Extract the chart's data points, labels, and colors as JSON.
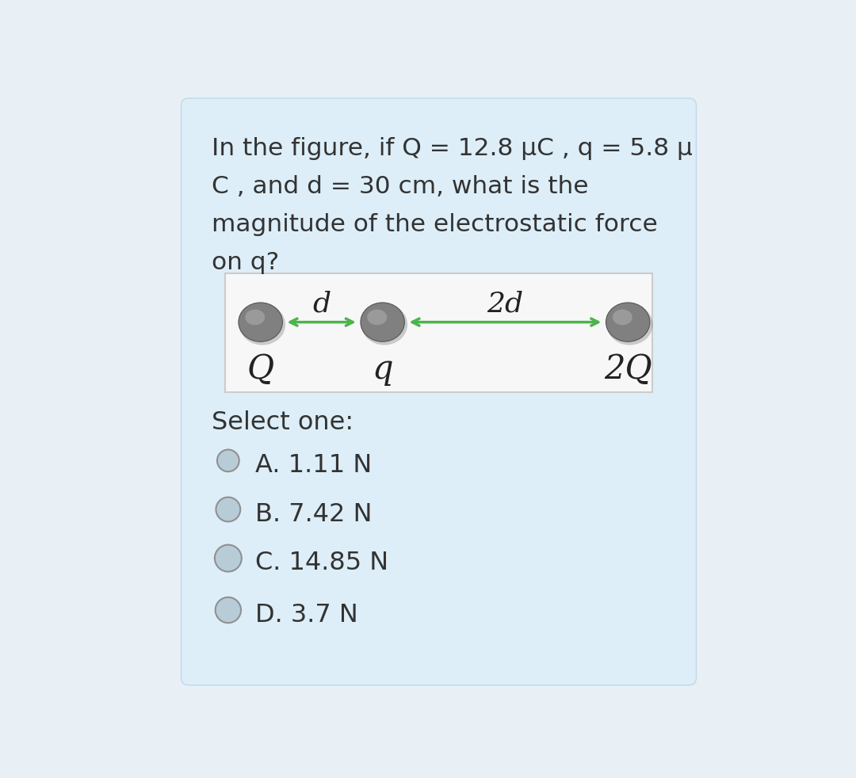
{
  "bg_color": "#ddeef8",
  "card_bg_color": "#ddeef8",
  "card_edge_color": "#c0d8ea",
  "diag_box_color": "#f7f7f7",
  "diag_box_edge": "#cccccc",
  "question_lines": [
    "In the figure, if Q = 12.8 μC , q = 5.8 μ",
    "C , and d = 30 cm, what is the",
    "magnitude of the electrostatic force",
    "on q?"
  ],
  "select_label": "Select one:",
  "options": [
    "A. 1.11 N",
    "B. 7.42 N",
    "C. 14.85 N",
    "D. 3.7 N"
  ],
  "arrow_color": "#4db34d",
  "sphere_dark": "#666666",
  "sphere_mid": "#888888",
  "sphere_light": "#aaaaaa",
  "text_color": "#333333",
  "label_d": "d",
  "label_2d": "2d",
  "label_Q": "Q",
  "label_q": "q",
  "label_2Q": "2Q"
}
